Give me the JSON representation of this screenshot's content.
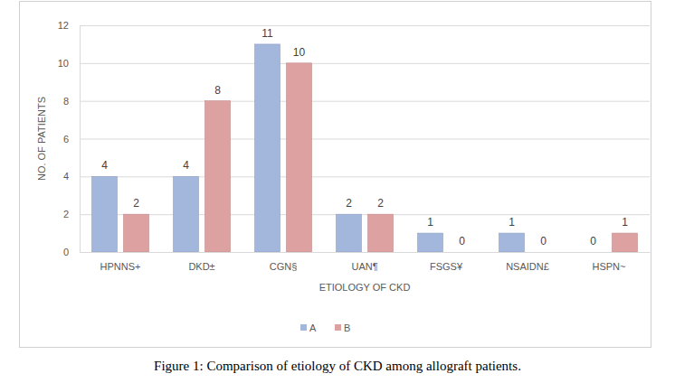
{
  "chart_data": {
    "type": "bar",
    "title": "Figure 1: Comparison of etiology of CKD among allograft patients.",
    "x_label": "ETIOLOGY OF CKD",
    "y_label": "NO. OF PATIENTS",
    "categories": [
      "HPNNS+",
      "DKD±",
      "CGN§",
      "UAN¶",
      "FSGS¥",
      "NSAIDN£",
      "HSPN~"
    ],
    "series": [
      {
        "name": "A",
        "color": "#a3b7dd",
        "values": [
          4,
          4,
          11,
          2,
          1,
          1,
          0
        ]
      },
      {
        "name": "B",
        "color": "#dea1a1",
        "values": [
          2,
          8,
          10,
          2,
          0,
          0,
          1
        ]
      }
    ],
    "ylim": [
      0,
      12
    ],
    "yticks": [
      0,
      2,
      4,
      6,
      8,
      10,
      12
    ],
    "grid": true,
    "legend": "bottom",
    "data_labels": true
  }
}
